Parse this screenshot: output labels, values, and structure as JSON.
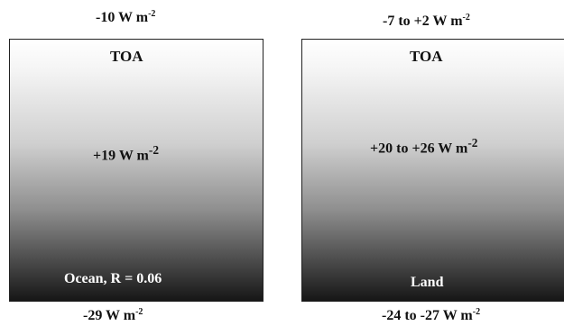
{
  "ocean": {
    "toa_flux": "-10 W m",
    "toa_flux_exp": "-2",
    "toa_label": "TOA",
    "atmos_flux": "+19 W m",
    "atmos_flux_exp": "-2",
    "surface_label": "Ocean, R = 0.06",
    "surface_flux": "-29 W m",
    "surface_flux_exp": "-2"
  },
  "land": {
    "toa_flux": "-7 to +2 W m",
    "toa_flux_exp": "-2",
    "toa_label": "TOA",
    "atmos_flux": "+20 to +26 W m",
    "atmos_flux_exp": "-2",
    "surface_label": "Land",
    "surface_flux": "-24 to -27 W m",
    "surface_flux_exp": "-2"
  }
}
